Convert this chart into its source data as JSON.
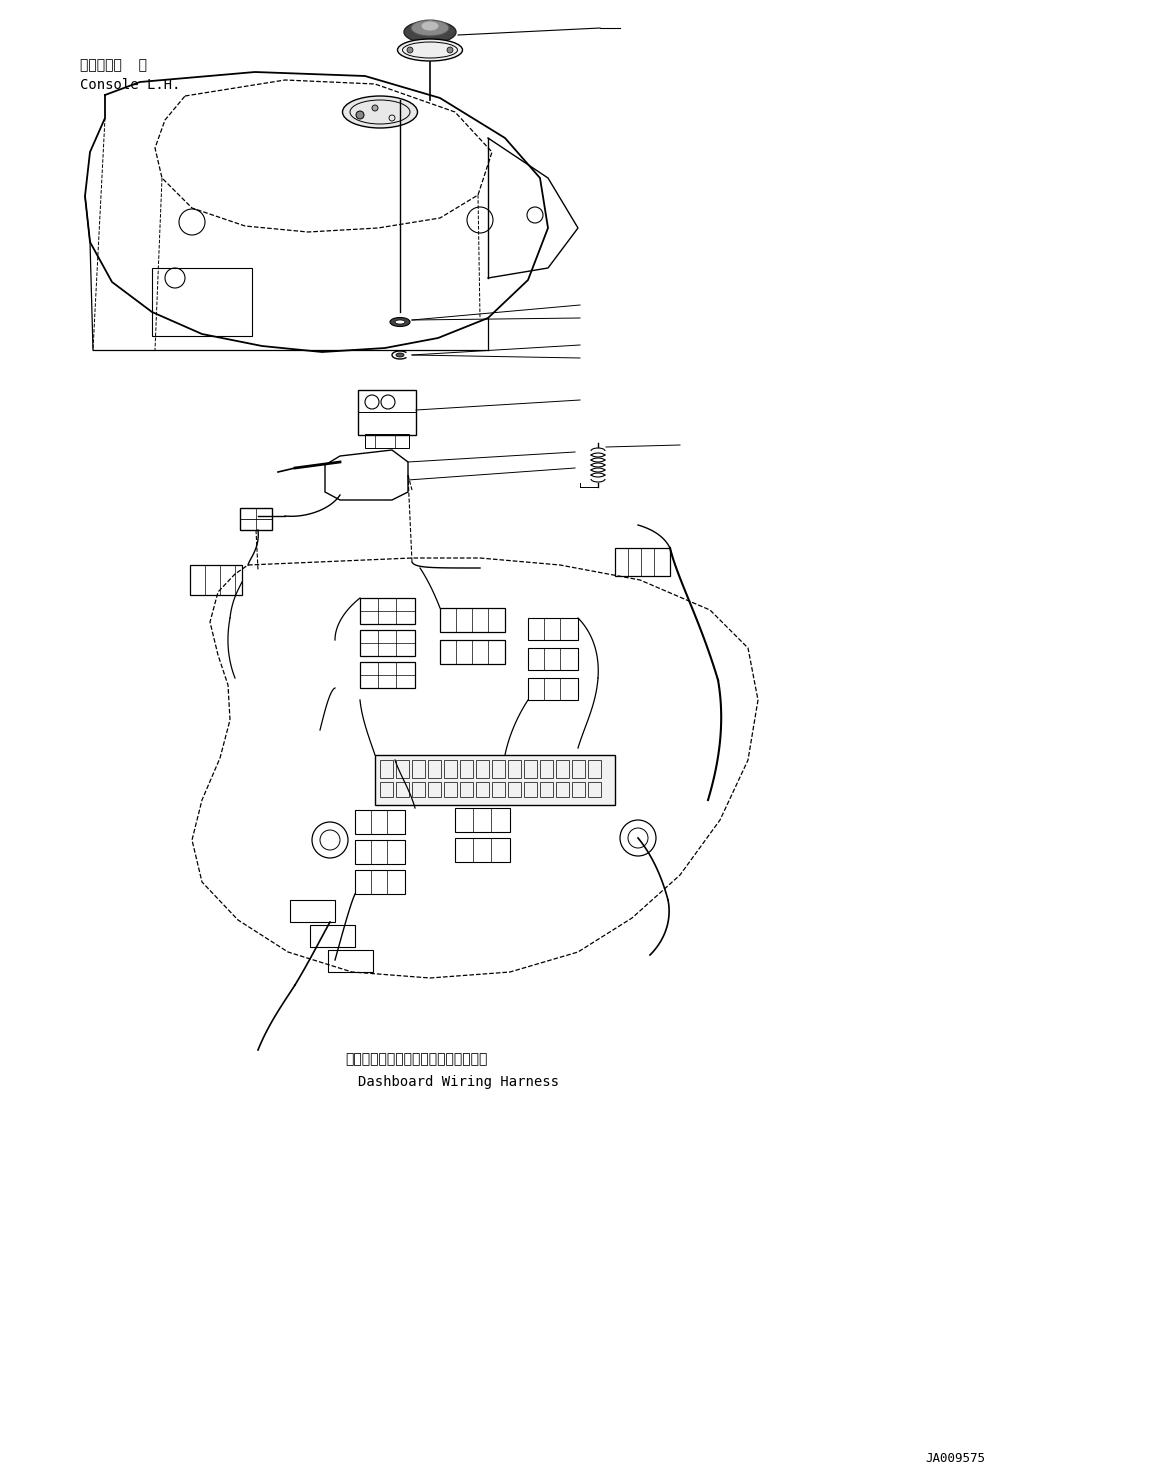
{
  "bg_color": "#ffffff",
  "line_color": "#000000",
  "fig_width": 11.63,
  "fig_height": 14.84,
  "label_console_jp": "コンソール  左",
  "label_console_en": "Console L.H.",
  "label_dashboard_jp": "ダッシュボードワイヤリングハーネス",
  "label_dashboard_en": "Dashboard Wiring Harness",
  "label_code": "JA009575"
}
